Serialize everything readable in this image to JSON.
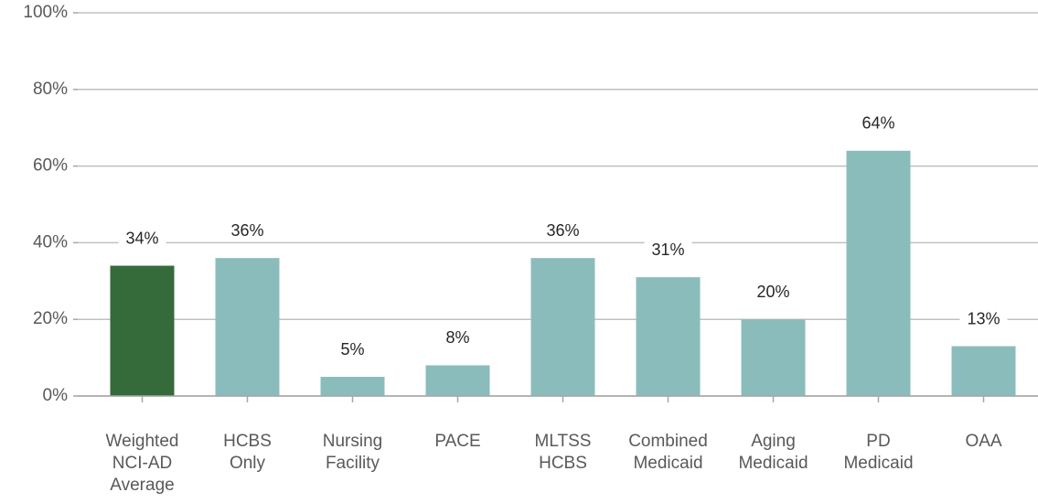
{
  "chart_data": {
    "type": "bar",
    "categories": [
      "Weighted\nNCI-AD\nAverage",
      "HCBS\nOnly",
      "Nursing\nFacility",
      "PACE",
      "MLTSS\nHCBS",
      "Combined\nMedicaid",
      "Aging\nMedicaid",
      "PD\nMedicaid",
      "OAA"
    ],
    "values": [
      34,
      36,
      5,
      8,
      36,
      31,
      20,
      64,
      13
    ],
    "value_labels": [
      "34%",
      "36%",
      "5%",
      "8%",
      "36%",
      "31%",
      "20%",
      "64%",
      "13%"
    ],
    "colors": [
      "#356a3a",
      "#8bbcbc",
      "#8bbcbc",
      "#8bbcbc",
      "#8bbcbc",
      "#8bbcbc",
      "#8bbcbc",
      "#8bbcbc",
      "#8bbcbc"
    ],
    "ylim": [
      0,
      100
    ],
    "yticks": [
      {
        "value": 0,
        "label": "0%"
      },
      {
        "value": 20,
        "label": "20%"
      },
      {
        "value": 40,
        "label": "40%"
      },
      {
        "value": 60,
        "label": "60%"
      },
      {
        "value": 80,
        "label": "80%"
      },
      {
        "value": 100,
        "label": "100%"
      }
    ],
    "grid": true
  }
}
